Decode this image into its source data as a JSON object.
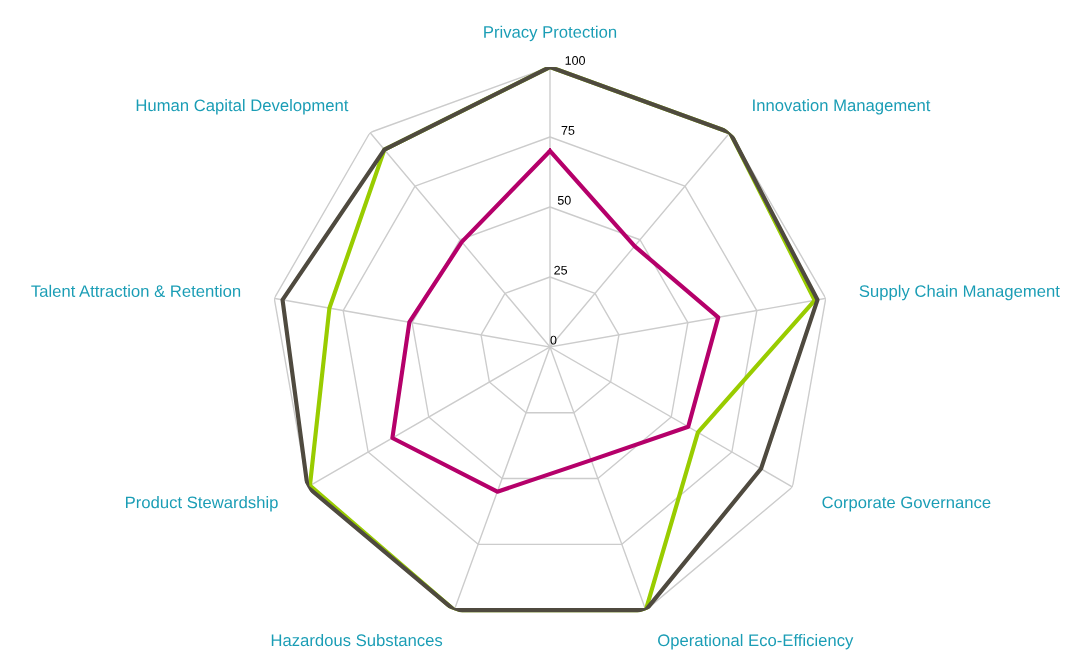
{
  "chart_data": {
    "type": "radar",
    "categories": [
      "Privacy Protection",
      "Innovation Management",
      "Supply Chain Management",
      "Corporate Governance",
      "Operational Eco-Efficiency",
      "Hazardous Substances",
      "Product Stewardship",
      "Talent Attraction & Retention",
      "Human Capital Development"
    ],
    "series": [
      {
        "color": "#99cc00",
        "values": [
          100,
          100,
          96,
          61,
          100,
          100,
          99,
          80,
          92
        ]
      },
      {
        "color": "#4f4a3f",
        "values": [
          100,
          100,
          97,
          87,
          100,
          100,
          100,
          97,
          92
        ]
      },
      {
        "color": "#b5006a",
        "values": [
          70,
          47,
          61,
          57,
          43,
          55,
          65,
          51,
          49
        ]
      }
    ],
    "ylim": [
      0,
      100
    ],
    "yticks": [
      0,
      25,
      50,
      75,
      100
    ],
    "grid": true,
    "marker": "none",
    "line_style": "solid"
  }
}
